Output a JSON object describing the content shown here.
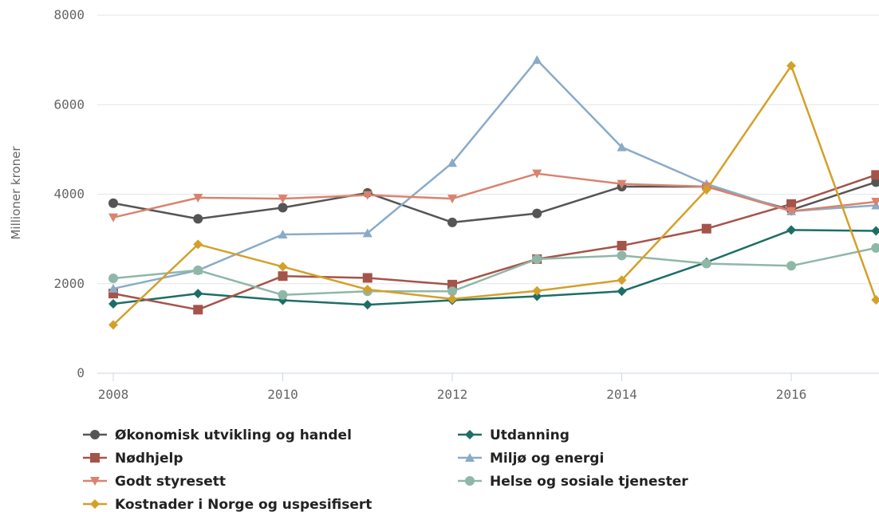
{
  "chart_data": {
    "type": "line",
    "title": "",
    "xlabel": "",
    "ylabel": "Millioner kroner",
    "x": [
      2008,
      2009,
      2010,
      2011,
      2012,
      2013,
      2014,
      2015,
      2016,
      2017
    ],
    "xlim": [
      2008,
      2017
    ],
    "ylim": [
      0,
      8000
    ],
    "xticks": [
      2008,
      2010,
      2012,
      2014,
      2016
    ],
    "xtick_labels": [
      "2008",
      "2010",
      "2012",
      "2014",
      "2016"
    ],
    "yticks": [
      0,
      2000,
      4000,
      6000,
      8000
    ],
    "ytick_labels": [
      "0",
      "2000",
      "4000",
      "6000",
      "8000"
    ],
    "grid": "horizontal",
    "legend_position": "bottom",
    "series": [
      {
        "name": "Økonomisk utvikling og handel",
        "color": "#555555",
        "marker": "circle",
        "values": [
          3800,
          3450,
          3700,
          4030,
          3370,
          3570,
          4170,
          4170,
          3650,
          4270
        ]
      },
      {
        "name": "Utdanning",
        "color": "#1e6e66",
        "marker": "diamond",
        "values": [
          1550,
          1780,
          1630,
          1530,
          1630,
          1720,
          1830,
          2480,
          3200,
          3180
        ]
      },
      {
        "name": "Nødhjelp",
        "color": "#a5544a",
        "marker": "square",
        "values": [
          1780,
          1420,
          2170,
          2130,
          1980,
          2550,
          2850,
          3230,
          3780,
          4430
        ]
      },
      {
        "name": "Miljø og energi",
        "color": "#8aabc8",
        "marker": "triangle-up",
        "values": [
          1890,
          2300,
          3100,
          3130,
          4700,
          7000,
          5050,
          4230,
          3620,
          3750
        ]
      },
      {
        "name": "Godt styresett",
        "color": "#d9836e",
        "marker": "triangle-down",
        "values": [
          3480,
          3920,
          3900,
          3980,
          3900,
          4460,
          4230,
          4170,
          3620,
          3830
        ]
      },
      {
        "name": "Helse og sosiale tjenester",
        "color": "#8fb7a7",
        "marker": "circle",
        "values": [
          2120,
          2300,
          1750,
          1830,
          1830,
          2550,
          2630,
          2450,
          2400,
          2800
        ]
      },
      {
        "name": "Kostnader i Norge og uspesifisert",
        "color": "#d4a02a",
        "marker": "diamond",
        "values": [
          1080,
          2880,
          2380,
          1870,
          1660,
          1840,
          2080,
          4100,
          6870,
          1640
        ]
      }
    ]
  }
}
